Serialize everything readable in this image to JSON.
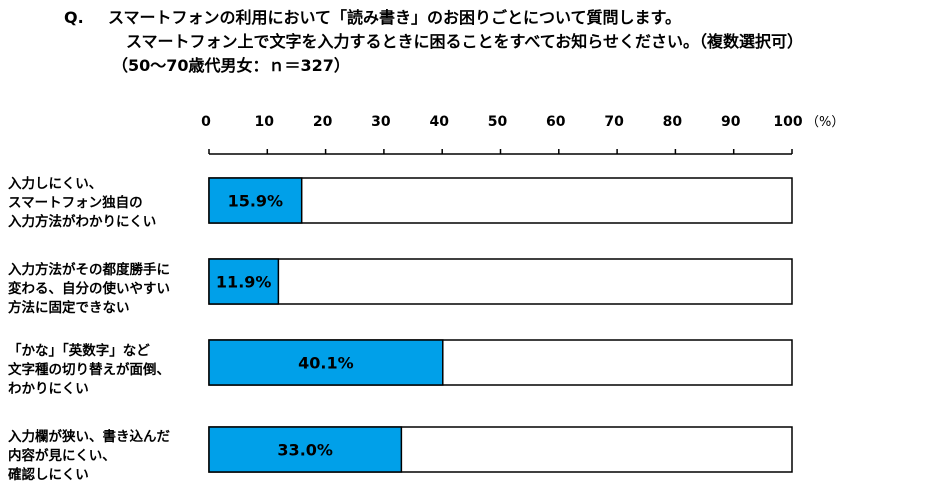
{
  "header": {
    "q_mark": "Q.",
    "line1": "スマートフォンの利用において「読み書き」のお困りごとについて質問します。",
    "line2": "スマートフォン上で文字を入力するときに困ることをすべてお知らせください。（複数選択可）",
    "line3": "（50〜70歳代男女：ｎ＝327）"
  },
  "chart_data": {
    "type": "bar",
    "orientation": "horizontal",
    "categories": [
      [
        "入力しにくい、",
        "スマートフォン独自の",
        "入力方法がわかりにくい"
      ],
      [
        "入力方法がその都度勝手に",
        "変わる、自分の使いやすい",
        "方法に固定できない"
      ],
      [
        "「かな」「英数字」など",
        "文字種の切り替えが面倒、",
        "わかりにくい"
      ],
      [
        "入力欄が狭い、書き込んだ",
        "内容が見にくい、",
        "確認しにくい"
      ]
    ],
    "values": [
      15.9,
      11.9,
      40.1,
      33.0
    ],
    "value_labels": [
      "15.9%",
      "11.9%",
      "40.1%",
      "33.0%"
    ],
    "xlim": [
      0,
      100
    ],
    "ticks": [
      0,
      10,
      20,
      30,
      40,
      50,
      60,
      70,
      80,
      90,
      100
    ],
    "tick_labels": [
      "0",
      "10",
      "20",
      "30",
      "40",
      "50",
      "60",
      "70",
      "80",
      "90",
      "100"
    ],
    "unit": "（%）",
    "axis_position": "top",
    "grid": false,
    "legend": "none",
    "bar_color": "#00a0e9",
    "bar_background": "#ffffff",
    "border_color": "#000000"
  }
}
